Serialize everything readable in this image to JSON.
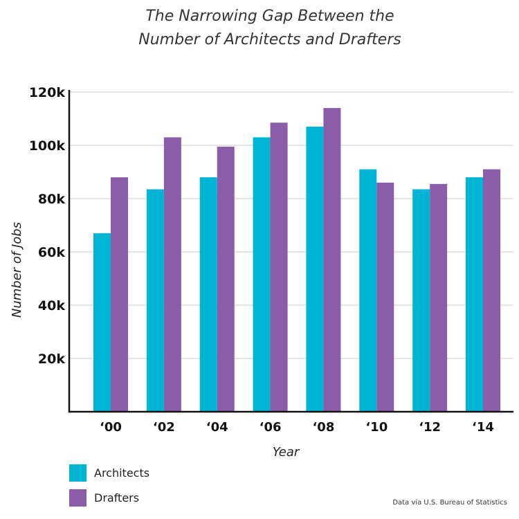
{
  "chart_data": {
    "type": "bar",
    "title": [
      "The Narrowing Gap Between the",
      "Number of Architects and Drafters"
    ],
    "xlabel": "Year",
    "ylabel": "Number of Jobs",
    "categories": [
      "‘00",
      "‘02",
      "‘04",
      "‘06",
      "‘08",
      "‘10",
      "‘12",
      "‘14"
    ],
    "series": [
      {
        "name": "Architects",
        "color": "#00b5d3",
        "values": [
          67000,
          83500,
          88000,
          103000,
          107000,
          91000,
          83500,
          88000
        ]
      },
      {
        "name": "Drafters",
        "color": "#8b5ca8",
        "values": [
          88000,
          103000,
          99500,
          108500,
          114000,
          86000,
          85500,
          91000
        ]
      }
    ],
    "ylim": [
      0,
      120000
    ],
    "yticks": [
      20000,
      40000,
      60000,
      80000,
      100000,
      120000
    ],
    "ytick_labels": [
      "20k",
      "40k",
      "60k",
      "80k",
      "100k",
      "120k"
    ],
    "grid": true,
    "legend_position": "bottom-left",
    "source_note": "Data via U.S. Bureau of Statistics"
  }
}
